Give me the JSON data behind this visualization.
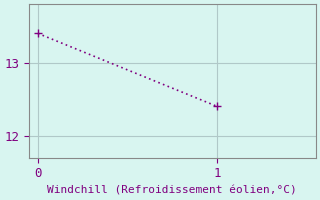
{
  "x": [
    0,
    1
  ],
  "y": [
    13.4,
    12.4
  ],
  "line_color": "#800080",
  "marker": "+",
  "marker_size": 6,
  "bg_color": "#d8f5f0",
  "grid_color": "#b0c8c8",
  "xlabel": "Windchill (Refroidissement éolien,°C)",
  "xlabel_color": "#800080",
  "tick_color": "#800080",
  "ylim": [
    11.7,
    13.8
  ],
  "xlim": [
    -0.05,
    1.55
  ],
  "yticks": [
    12,
    13
  ],
  "xticks": [
    0,
    1
  ],
  "linewidth": 1.2,
  "xlabel_fontsize": 8,
  "tick_fontsize": 9
}
